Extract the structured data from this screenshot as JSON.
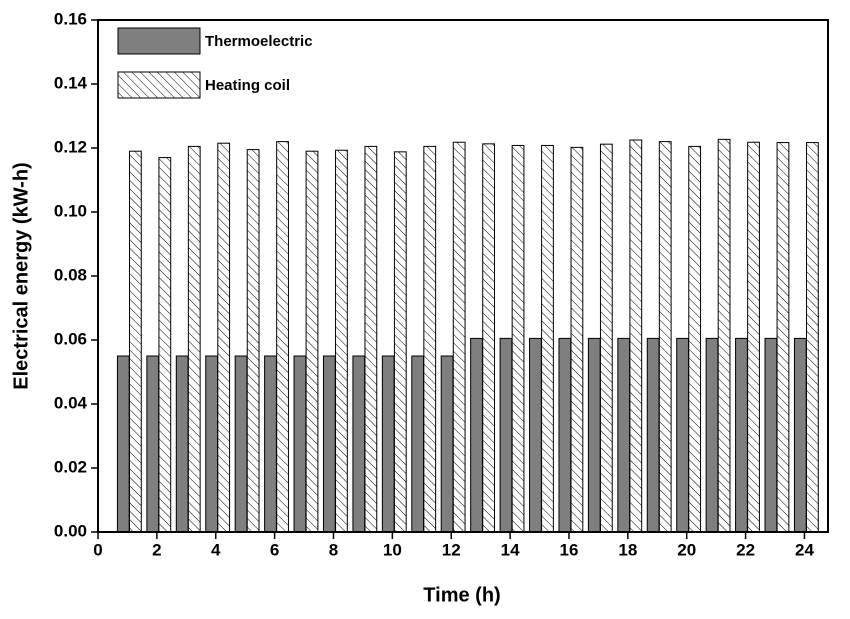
{
  "chart_data": {
    "type": "bar",
    "x": [
      1,
      2,
      3,
      4,
      5,
      6,
      7,
      8,
      9,
      10,
      11,
      12,
      13,
      14,
      15,
      16,
      17,
      18,
      19,
      20,
      21,
      22,
      23,
      24
    ],
    "series": [
      {
        "name": "Thermoelectric",
        "color": "#7f7f7f",
        "hatch": false,
        "values": [
          0.055,
          0.055,
          0.055,
          0.055,
          0.055,
          0.055,
          0.055,
          0.055,
          0.055,
          0.055,
          0.055,
          0.055,
          0.0605,
          0.0605,
          0.0605,
          0.0605,
          0.0605,
          0.0605,
          0.0605,
          0.0605,
          0.0605,
          0.0605,
          0.0605,
          0.0605
        ]
      },
      {
        "name": "Heating coil",
        "color": "#ffffff",
        "hatch": true,
        "values": [
          0.119,
          0.117,
          0.1205,
          0.1215,
          0.1195,
          0.122,
          0.119,
          0.1193,
          0.1205,
          0.1188,
          0.1205,
          0.1218,
          0.1213,
          0.1208,
          0.1208,
          0.1202,
          0.1212,
          0.1225,
          0.122,
          0.1205,
          0.1227,
          0.1218,
          0.1217,
          0.1217
        ]
      }
    ],
    "x_label": "Time (h)",
    "y_label": "Electrical energy (kW-h)",
    "xlim": [
      0,
      24.8
    ],
    "xticks": [
      0,
      2,
      4,
      6,
      8,
      10,
      12,
      14,
      16,
      18,
      20,
      22,
      24
    ],
    "ylim": [
      0,
      0.16
    ],
    "yticks": [
      {
        "value": 0,
        "label": "0.00"
      },
      0.02,
      0.04,
      0.06,
      0.08,
      {
        "value": 0.1,
        "label": "0.10"
      },
      0.12,
      0.14,
      0.16
    ],
    "legend": "upper left"
  }
}
